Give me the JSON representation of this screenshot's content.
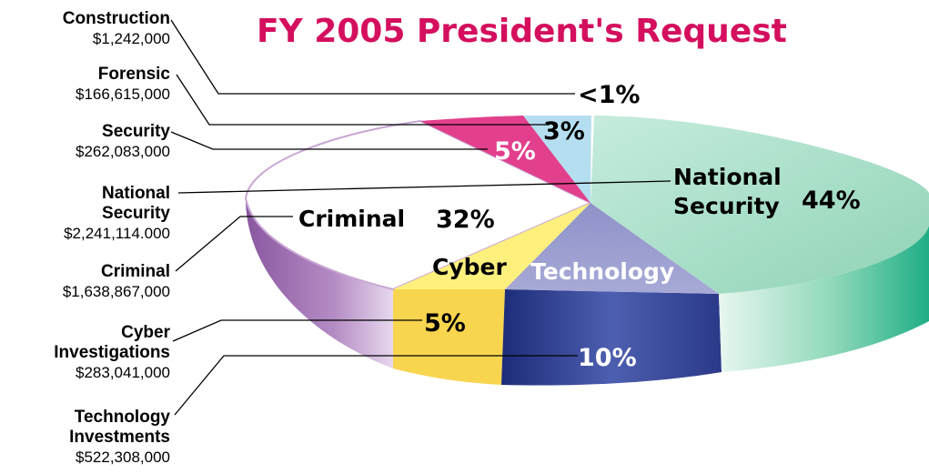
{
  "chart_data": {
    "type": "pie",
    "title": "FY 2005 President's Request",
    "slices": [
      {
        "key": "construction",
        "name": "Construction",
        "amount": "$1,242,000",
        "pct_label": "<1%",
        "value": 0.03,
        "color": "#ffffff",
        "side_color": "#dddddd"
      },
      {
        "key": "forensic",
        "name": "Forensic",
        "amount": "$166,615,000",
        "pct_label": "3%",
        "value": 3,
        "color": "#b5dff0",
        "side_color": "#8fc4dc"
      },
      {
        "key": "security",
        "name": "Security",
        "amount": "$262,083,000",
        "pct_label": "5%",
        "value": 5,
        "color": "#e23f8d",
        "side_color": "#b52c6c"
      },
      {
        "key": "criminal",
        "name": "Criminal",
        "amount": "$1,638,867,000",
        "pct_label": "32%",
        "value": 32,
        "color": "#ffffff",
        "side_color": "#9a69ab"
      },
      {
        "key": "cyber",
        "name": "Cyber Investigations",
        "name_lines": [
          "Cyber",
          "Investigations"
        ],
        "short_name": "Cyber",
        "amount": "$283,041,000",
        "pct_label": "5%",
        "value": 5,
        "color": "#fdf07d",
        "side_color": "#f8d54e"
      },
      {
        "key": "technology",
        "name": "Technology Investments",
        "name_lines": [
          "Technology",
          "Investments"
        ],
        "short_name": "Technology",
        "amount": "$522,308,000",
        "pct_label": "10%",
        "value": 10,
        "color": "#9c9ed0",
        "side_color": "#2f3f8f"
      },
      {
        "key": "national",
        "name": "National Security",
        "name_lines": [
          "National",
          "Security"
        ],
        "amount": "$2,241,114.000",
        "pct_label": "44%",
        "value": 44,
        "color": "#a8e0c9",
        "side_color": "#22b48b"
      }
    ]
  }
}
